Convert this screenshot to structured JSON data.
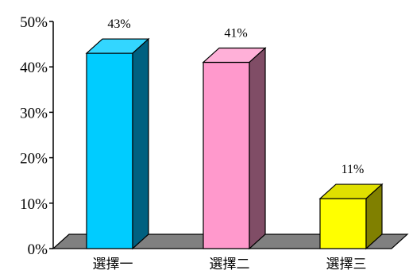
{
  "chart_data": {
    "type": "bar",
    "categories": [
      "選擇一",
      "選擇二",
      "選擇三"
    ],
    "values": [
      43,
      41,
      11
    ],
    "data_labels": [
      "43%",
      "41%",
      "11%"
    ],
    "y_ticks": [
      "0%",
      "10%",
      "20%",
      "30%",
      "40%",
      "50%"
    ],
    "ylim": [
      0,
      50
    ],
    "title": "",
    "xlabel": "",
    "ylabel": "",
    "grid": false,
    "legend": "none",
    "style": "3d-columns",
    "colors": {
      "bars": [
        {
          "front": "#00ccff",
          "top": "#33d6ff",
          "side": "#006080"
        },
        {
          "front": "#ff99cc",
          "top": "#ffb0d8",
          "side": "#804d66"
        },
        {
          "front": "#ffff00",
          "top": "#e0e000",
          "side": "#808000"
        }
      ],
      "floor": "#808080",
      "axis": "#000000"
    }
  }
}
